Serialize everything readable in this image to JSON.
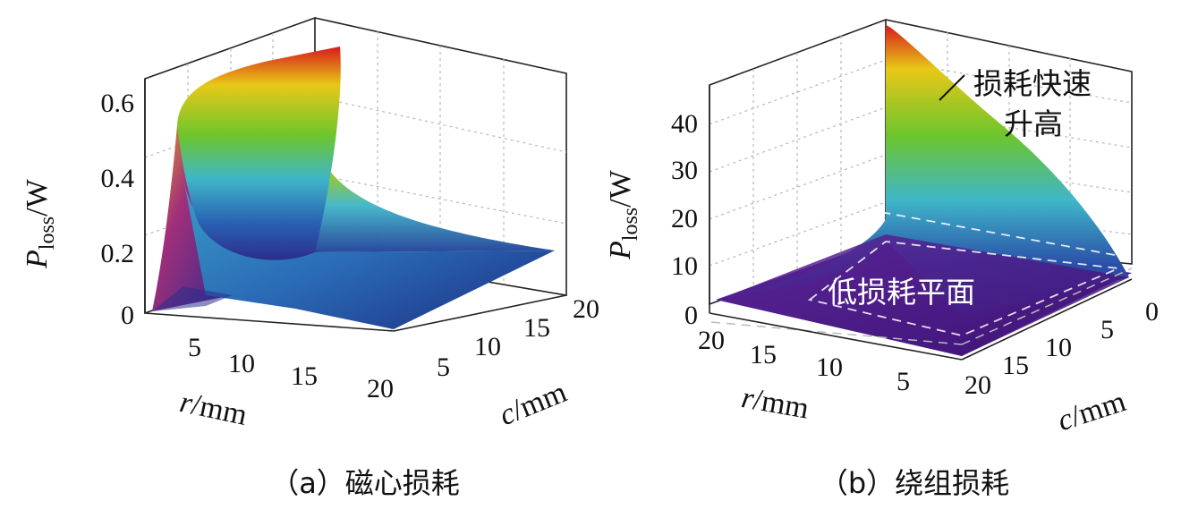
{
  "chart_data": [
    {
      "type": "surface",
      "caption": "（a）磁心损耗",
      "xlabel_italic": "r",
      "xlabel_unit": "/mm",
      "ylabel_italic": "c",
      "ylabel_unit": "/mm",
      "zlabel_italic": "P",
      "zlabel_sub": "loss",
      "zlabel_unit": "/W",
      "x_ticks": [
        "5",
        "10",
        "15",
        "20"
      ],
      "y_ticks": [
        "5",
        "10",
        "15",
        "20"
      ],
      "z_ticks": [
        "0",
        "0.2",
        "0.4",
        "0.6"
      ],
      "xlim": [
        0,
        20
      ],
      "ylim": [
        0,
        20
      ],
      "zlim": [
        0,
        0.65
      ],
      "grid": true,
      "colormap": "jet",
      "samples": [
        {
          "r": 0.5,
          "c": 0.5,
          "p": 0.03
        },
        {
          "r": 1,
          "c": 0.5,
          "p": 0.62
        },
        {
          "r": 2,
          "c": 20,
          "p": 0.63
        },
        {
          "r": 5,
          "c": 10,
          "p": 0.22
        },
        {
          "r": 10,
          "c": 10,
          "p": 0.12
        },
        {
          "r": 20,
          "c": 0.5,
          "p": 0.02
        },
        {
          "r": 20,
          "c": 20,
          "p": 0.22
        }
      ]
    },
    {
      "type": "surface",
      "caption": "（b）绕组损耗",
      "xlabel_italic": "r",
      "xlabel_unit": "/mm",
      "ylabel_italic": "c",
      "ylabel_unit": "/mm",
      "zlabel_italic": "P",
      "zlabel_sub": "loss",
      "zlabel_unit": "/W",
      "x_ticks": [
        "20",
        "15",
        "10",
        "5"
      ],
      "y_ticks": [
        "0",
        "5",
        "10",
        "15",
        "20"
      ],
      "z_ticks": [
        "0",
        "10",
        "20",
        "30",
        "40"
      ],
      "xlim": [
        0,
        20
      ],
      "ylim": [
        0,
        20
      ],
      "zlim": [
        0,
        48
      ],
      "grid": true,
      "colormap": "jet",
      "annotations": [
        "损耗快速",
        "升高",
        "低损耗平面"
      ],
      "samples": [
        {
          "r": 0,
          "c": 0,
          "p": 48
        },
        {
          "r": 5,
          "c": 0,
          "p": 12
        },
        {
          "r": 10,
          "c": 10,
          "p": 3
        },
        {
          "r": 20,
          "c": 20,
          "p": 1
        },
        {
          "r": 20,
          "c": 0,
          "p": 1
        },
        {
          "r": 0,
          "c": 20,
          "p": 2
        }
      ]
    }
  ],
  "colors": {
    "jet_red": "#d7191c",
    "jet_yellow": "#e8c817",
    "jet_green": "#6cc52d",
    "jet_cyan": "#3fb6c9",
    "jet_blue": "#1f3f98",
    "plane_purple": "#4b1a8c"
  }
}
